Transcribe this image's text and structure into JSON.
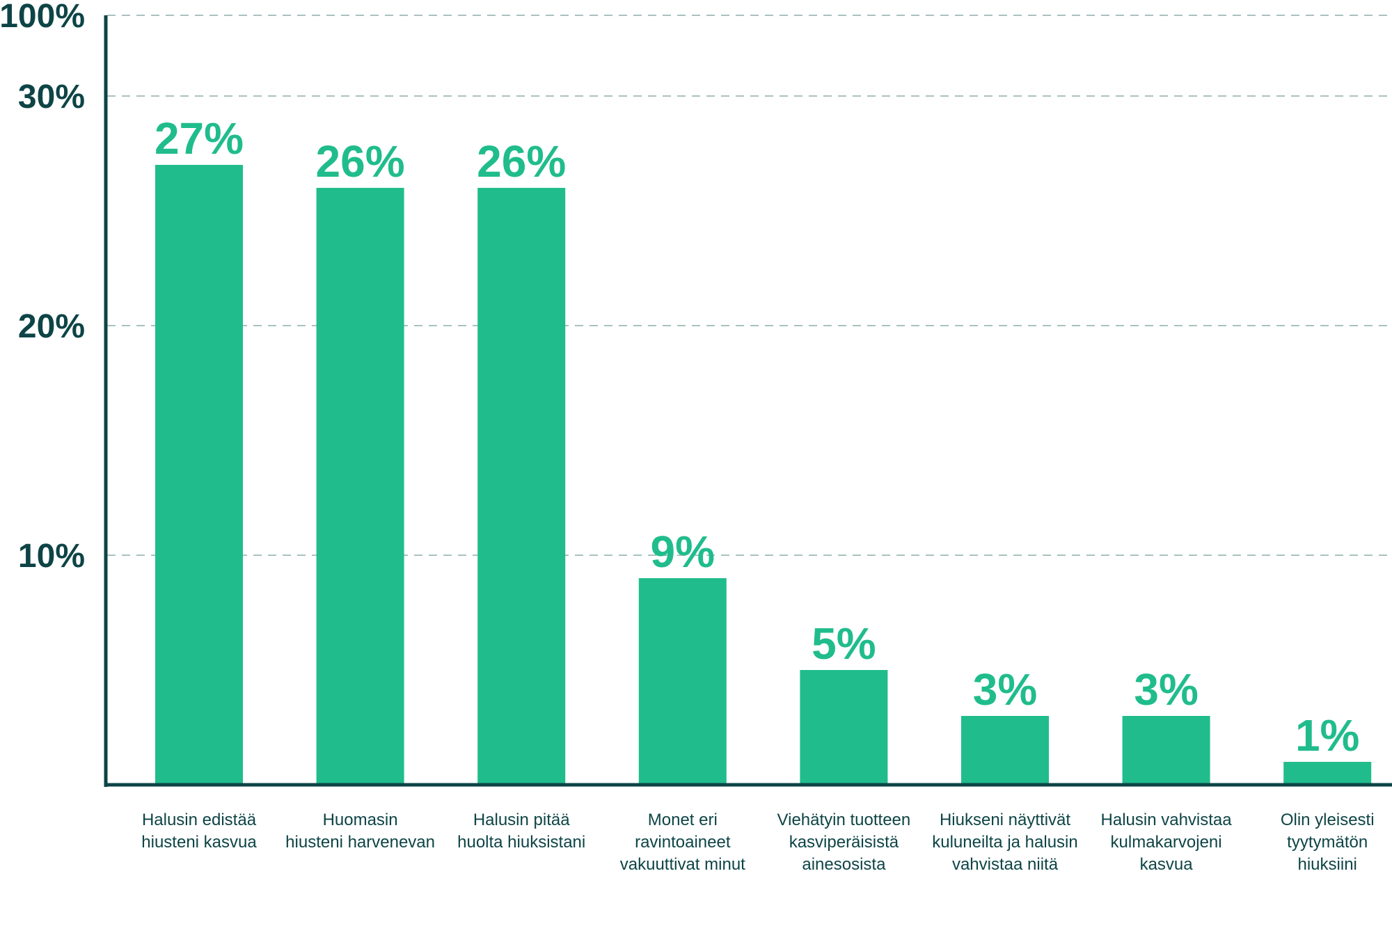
{
  "colors": {
    "bar": "#20BC8C",
    "axis": "#0E4446",
    "grid": "#A9C1C0",
    "label": "#0E4446",
    "data_label": "#20BC8C"
  },
  "chart_data": {
    "type": "bar",
    "title": "",
    "xlabel": "",
    "ylabel": "",
    "y_scale": "broken",
    "y_note": "Axis runs 0-30% linearly; the top tick jumps to 100%",
    "ylim": [
      0,
      100
    ],
    "grid": true,
    "y_ticks": [
      {
        "value": 10,
        "label": "10%"
      },
      {
        "value": 20,
        "label": "20%"
      },
      {
        "value": 30,
        "label": "30%"
      },
      {
        "value": 100,
        "label": "100%"
      }
    ],
    "categories": [
      [
        "Halusin edistää",
        "hiusteni kasvua"
      ],
      [
        "Huomasin",
        "hiusteni harvenevan"
      ],
      [
        "Halusin pitää",
        "huolta hiuksistani"
      ],
      [
        "Monet eri",
        "ravintoaineet",
        "vakuuttivat minut"
      ],
      [
        "Viehätyin tuotteen",
        "kasviperäisistä",
        "ainesosista"
      ],
      [
        "Hiukseni näyttivät",
        "kuluneilta ja halusin",
        "vahvistaa niitä"
      ],
      [
        "Halusin vahvistaa",
        "kulmakarvojeni",
        "kasvua"
      ],
      [
        "Olin yleisesti",
        "tyytymätön",
        "hiuksiini"
      ]
    ],
    "values": [
      27,
      26,
      26,
      9,
      5,
      3,
      3,
      1
    ],
    "data_labels": [
      "27%",
      "26%",
      "26%",
      "9%",
      "5%",
      "3%",
      "3%",
      "1%"
    ]
  }
}
